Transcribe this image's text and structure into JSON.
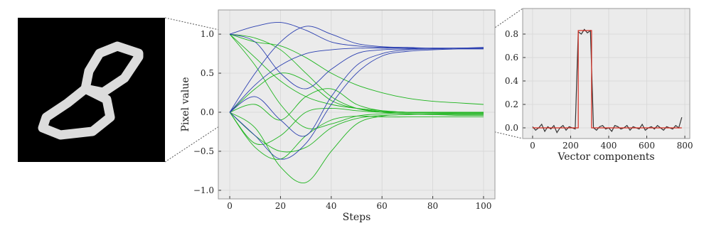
{
  "chart_data": [
    {
      "type": "line",
      "xlabel": "Steps",
      "ylabel": "Pixel value",
      "x": [
        0,
        10,
        20,
        30,
        40,
        50,
        60,
        70,
        80,
        90,
        100
      ],
      "series": [
        {
          "color": "#1fb51f",
          "values": [
            1,
            0.7,
            0.4,
            0.2,
            0.1,
            0.05,
            0.02,
            0,
            0,
            0,
            0
          ]
        },
        {
          "color": "#1fb51f",
          "values": [
            0,
            -0.3,
            -0.5,
            -0.45,
            -0.2,
            -0.08,
            -0.04,
            -0.03,
            -0.02,
            -0.02,
            -0.02
          ]
        },
        {
          "color": "#1fb51f",
          "values": [
            0,
            0.3,
            0.5,
            0.4,
            0.15,
            0.05,
            0.01,
            0,
            -0.01,
            -0.02,
            -0.02
          ]
        },
        {
          "color": "#1fb51f",
          "values": [
            1,
            0.95,
            0.8,
            0.5,
            0.2,
            0.05,
            0,
            -0.02,
            -0.03,
            -0.03,
            -0.03
          ]
        },
        {
          "color": "#1fb51f",
          "values": [
            0,
            -0.2,
            -0.7,
            -0.9,
            -0.5,
            -0.15,
            -0.05,
            -0.03,
            -0.03,
            -0.04,
            -0.04
          ]
        },
        {
          "color": "#1fb51f",
          "values": [
            0,
            0.1,
            -0.1,
            0.2,
            0.3,
            0.1,
            0.02,
            0,
            -0.01,
            -0.01,
            -0.01
          ]
        },
        {
          "color": "#1fb51f",
          "values": [
            1,
            0.6,
            0.1,
            -0.2,
            -0.15,
            -0.05,
            -0.02,
            -0.01,
            -0.01,
            -0.01,
            -0.01
          ]
        },
        {
          "color": "#1fb51f",
          "values": [
            0,
            -0.4,
            -0.3,
            0,
            0.05,
            0.02,
            0,
            0,
            0,
            0,
            0
          ]
        },
        {
          "color": "#1fb51f",
          "values": [
            1,
            0.9,
            0.85,
            0.7,
            0.5,
            0.35,
            0.25,
            0.18,
            0.14,
            0.12,
            0.1
          ]
        },
        {
          "color": "#1fb51f",
          "values": [
            0,
            -0.45,
            -0.6,
            -0.3,
            -0.1,
            -0.05,
            -0.06,
            -0.06,
            -0.06,
            -0.06,
            -0.06
          ]
        },
        {
          "color": "#2b3fb0",
          "values": [
            0,
            0.35,
            0.6,
            0.75,
            0.8,
            0.82,
            0.82,
            0.82,
            0.82,
            0.82,
            0.82
          ]
        },
        {
          "color": "#2b3fb0",
          "values": [
            1,
            0.9,
            0.5,
            0.3,
            0.55,
            0.75,
            0.8,
            0.81,
            0.82,
            0.82,
            0.82
          ]
        },
        {
          "color": "#2b3fb0",
          "values": [
            0,
            -0.3,
            -0.6,
            -0.4,
            0.1,
            0.5,
            0.72,
            0.78,
            0.8,
            0.81,
            0.81
          ]
        },
        {
          "color": "#2b3fb0",
          "values": [
            0,
            0.2,
            -0.1,
            -0.3,
            0.2,
            0.6,
            0.75,
            0.8,
            0.81,
            0.82,
            0.83
          ]
        },
        {
          "color": "#2b3fb0",
          "values": [
            1,
            1.1,
            1.15,
            1.05,
            0.9,
            0.85,
            0.83,
            0.82,
            0.82,
            0.82,
            0.82
          ]
        },
        {
          "color": "#2b3fb0",
          "values": [
            0,
            0.5,
            0.9,
            1.1,
            1.0,
            0.88,
            0.84,
            0.83,
            0.82,
            0.82,
            0.82
          ]
        }
      ],
      "xlim": [
        -4.5,
        104.5
      ],
      "ylim": [
        -1.11,
        1.31
      ],
      "xticks": [
        0,
        20,
        40,
        60,
        80,
        100
      ],
      "yticks": [
        {
          "value": -1,
          "label": "−1.0"
        },
        {
          "value": -0.5,
          "label": "−0.5"
        },
        {
          "value": 0,
          "label": "0.0"
        },
        {
          "value": 0.5,
          "label": "0.5"
        },
        {
          "value": 1,
          "label": "1.0"
        }
      ],
      "grid": true
    },
    {
      "type": "line",
      "xlabel": "Vector components",
      "series": [
        {
          "color": "#333333",
          "x": [
            0,
            16,
            32,
            48,
            64,
            80,
            96,
            112,
            128,
            144,
            160,
            176,
            192,
            208,
            224,
            240,
            256,
            272,
            288,
            304,
            320,
            336,
            352,
            368,
            384,
            400,
            416,
            432,
            448,
            464,
            480,
            496,
            512,
            528,
            544,
            560,
            576,
            592,
            608,
            624,
            640,
            656,
            672,
            688,
            704,
            720,
            736,
            752,
            768,
            784
          ],
          "values": [
            0.01,
            -0.02,
            0.0,
            0.03,
            -0.03,
            0.01,
            -0.01,
            0.02,
            -0.04,
            0.0,
            0.02,
            -0.02,
            0.01,
            0.0,
            -0.01,
            0.82,
            0.8,
            0.84,
            0.81,
            0.83,
            0.0,
            -0.02,
            0.01,
            0.02,
            -0.01,
            0.0,
            -0.03,
            0.02,
            0.01,
            -0.01,
            0.0,
            0.02,
            -0.02,
            0.01,
            0.0,
            -0.01,
            0.03,
            -0.02,
            0.0,
            0.01,
            -0.01,
            0.02,
            0.0,
            -0.02,
            0.01,
            0.0,
            -0.01,
            0.02,
            0.0,
            0.09
          ]
        },
        {
          "color": "#d62a1e",
          "x": [
            0,
            240,
            240,
            310,
            310,
            784
          ],
          "values": [
            0,
            0,
            0.83,
            0.83,
            0,
            0
          ]
        }
      ],
      "xlim": [
        -52,
        826
      ],
      "ylim": [
        -0.091,
        1.018
      ],
      "xticks": [
        0,
        200,
        400,
        600,
        800
      ],
      "yticks": [
        {
          "value": 0,
          "label": "0.0"
        },
        {
          "value": 0.2,
          "label": "0.2"
        },
        {
          "value": 0.4,
          "label": "0.4"
        },
        {
          "value": 0.6,
          "label": "0.6"
        },
        {
          "value": 0.8,
          "label": "0.8"
        }
      ],
      "grid": true
    }
  ]
}
